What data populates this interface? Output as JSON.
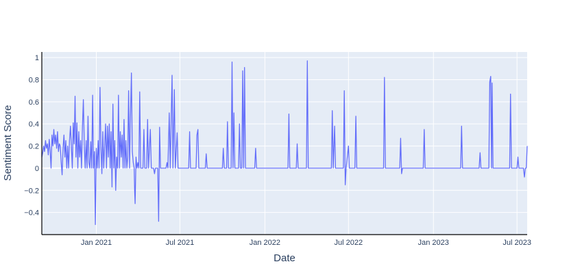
{
  "chart_data": {
    "type": "line",
    "title": "",
    "xlabel": "Date",
    "ylabel": "Sentiment Score",
    "xlim": [
      "2020-09-05",
      "2023-07-23"
    ],
    "ylim": [
      -0.6,
      1.05
    ],
    "grid": true,
    "colors": {
      "line": "#636efa",
      "plot_bg": "#e5ecf6",
      "grid": "#ffffff",
      "axis": "#000000",
      "text": "#2a3f5f"
    },
    "x_ticks": [
      {
        "date": "2021-01-01",
        "label": "Jan 2021"
      },
      {
        "date": "2021-07-01",
        "label": "Jul 2021"
      },
      {
        "date": "2022-01-01",
        "label": "Jan 2022"
      },
      {
        "date": "2022-07-01",
        "label": "Jul 2022"
      },
      {
        "date": "2023-01-01",
        "label": "Jan 2023"
      },
      {
        "date": "2023-07-01",
        "label": "Jul 2023"
      }
    ],
    "y_ticks": [
      {
        "value": -0.4,
        "label": "−0.4"
      },
      {
        "value": -0.2,
        "label": "−0.2"
      },
      {
        "value": 0,
        "label": "0"
      },
      {
        "value": 0.2,
        "label": "0.2"
      },
      {
        "value": 0.4,
        "label": "0.4"
      },
      {
        "value": 0.6,
        "label": "0.6"
      },
      {
        "value": 0.8,
        "label": "0.8"
      },
      {
        "value": 1,
        "label": "1"
      }
    ],
    "series": [
      {
        "values": [
          [
            "2020-09-05",
            0.1
          ],
          [
            "2020-09-07",
            0.14
          ],
          [
            "2020-09-09",
            0.2
          ],
          [
            "2020-09-11",
            0.15
          ],
          [
            "2020-09-13",
            0.25
          ],
          [
            "2020-09-15",
            0.18
          ],
          [
            "2020-09-17",
            0.22
          ],
          [
            "2020-09-19",
            0.12
          ],
          [
            "2020-09-21",
            0.26
          ],
          [
            "2020-09-23",
            0.16
          ],
          [
            "2020-09-25",
            0.0
          ],
          [
            "2020-09-27",
            0.3
          ],
          [
            "2020-09-29",
            0.2
          ],
          [
            "2020-10-01",
            0.35
          ],
          [
            "2020-10-03",
            0.22
          ],
          [
            "2020-10-05",
            0.3
          ],
          [
            "2020-10-07",
            0.18
          ],
          [
            "2020-10-09",
            0.33
          ],
          [
            "2020-10-11",
            0.15
          ],
          [
            "2020-10-13",
            0.22
          ],
          [
            "2020-10-15",
            0.2
          ],
          [
            "2020-10-17",
            0.05
          ],
          [
            "2020-10-19",
            -0.06
          ],
          [
            "2020-10-21",
            0.18
          ],
          [
            "2020-10-23",
            0.3
          ],
          [
            "2020-10-25",
            0.1
          ],
          [
            "2020-10-27",
            0.25
          ],
          [
            "2020-10-29",
            0.0
          ],
          [
            "2020-10-31",
            0.2
          ],
          [
            "2020-11-02",
            0.0
          ],
          [
            "2020-11-04",
            0.25
          ],
          [
            "2020-11-06",
            0.38
          ],
          [
            "2020-11-08",
            0.2
          ],
          [
            "2020-11-10",
            0.0
          ],
          [
            "2020-11-12",
            0.41
          ],
          [
            "2020-11-14",
            0.22
          ],
          [
            "2020-11-16",
            0.65
          ],
          [
            "2020-11-18",
            0.1
          ],
          [
            "2020-11-20",
            0.41
          ],
          [
            "2020-11-22",
            0.0
          ],
          [
            "2020-11-24",
            0.33
          ],
          [
            "2020-11-26",
            0.1
          ],
          [
            "2020-11-28",
            0.25
          ],
          [
            "2020-11-30",
            0.0
          ],
          [
            "2020-12-02",
            0.38
          ],
          [
            "2020-12-04",
            0.62
          ],
          [
            "2020-12-06",
            0.2
          ],
          [
            "2020-12-08",
            0.0
          ],
          [
            "2020-12-10",
            0.25
          ],
          [
            "2020-12-12",
            0.0
          ],
          [
            "2020-12-14",
            0.47
          ],
          [
            "2020-12-16",
            0.05
          ],
          [
            "2020-12-18",
            0.0
          ],
          [
            "2020-12-20",
            0.24
          ],
          [
            "2020-12-22",
            0.0
          ],
          [
            "2020-12-24",
            0.66
          ],
          [
            "2020-12-26",
            0.0
          ],
          [
            "2020-12-28",
            0.15
          ],
          [
            "2020-12-30",
            -0.51
          ],
          [
            "2021-01-01",
            0.18
          ],
          [
            "2021-01-03",
            0.0
          ],
          [
            "2021-01-05",
            0.25
          ],
          [
            "2021-01-07",
            0.0
          ],
          [
            "2021-01-09",
            0.73
          ],
          [
            "2021-01-11",
            0.2
          ],
          [
            "2021-01-13",
            -0.05
          ],
          [
            "2021-01-15",
            0.33
          ],
          [
            "2021-01-17",
            0.0
          ],
          [
            "2021-01-19",
            0.2
          ],
          [
            "2021-01-21",
            0.4
          ],
          [
            "2021-01-23",
            0.0
          ],
          [
            "2021-01-25",
            0.38
          ],
          [
            "2021-01-27",
            0.1
          ],
          [
            "2021-01-29",
            0.4
          ],
          [
            "2021-01-31",
            0.0
          ],
          [
            "2021-02-02",
            0.33
          ],
          [
            "2021-02-04",
            -0.17
          ],
          [
            "2021-02-06",
            0.58
          ],
          [
            "2021-02-08",
            0.0
          ],
          [
            "2021-02-10",
            0.25
          ],
          [
            "2021-02-12",
            -0.2
          ],
          [
            "2021-02-14",
            0.1
          ],
          [
            "2021-02-16",
            0.0
          ],
          [
            "2021-02-18",
            0.66
          ],
          [
            "2021-02-20",
            0.0
          ],
          [
            "2021-02-22",
            0.33
          ],
          [
            "2021-02-24",
            0.1
          ],
          [
            "2021-02-26",
            0.3
          ],
          [
            "2021-02-28",
            0.0
          ],
          [
            "2021-03-02",
            0.44
          ],
          [
            "2021-03-04",
            0.0
          ],
          [
            "2021-03-06",
            0.25
          ],
          [
            "2021-03-08",
            0.0
          ],
          [
            "2021-03-10",
            0.1
          ],
          [
            "2021-03-12",
            0.7
          ],
          [
            "2021-03-14",
            0.0
          ],
          [
            "2021-03-16",
            0.47
          ],
          [
            "2021-03-18",
            0.86
          ],
          [
            "2021-03-20",
            0.15
          ],
          [
            "2021-03-22",
            0.05
          ],
          [
            "2021-03-24",
            0.0
          ],
          [
            "2021-03-25",
            -0.2
          ],
          [
            "2021-03-26",
            -0.32
          ],
          [
            "2021-03-28",
            0.1
          ],
          [
            "2021-03-30",
            0.0
          ],
          [
            "2021-04-01",
            0.05
          ],
          [
            "2021-04-03",
            0.0
          ],
          [
            "2021-04-05",
            0.69
          ],
          [
            "2021-04-07",
            0.0
          ],
          [
            "2021-04-12",
            0.0
          ],
          [
            "2021-04-14",
            0.35
          ],
          [
            "2021-04-16",
            0.0
          ],
          [
            "2021-04-20",
            0.0
          ],
          [
            "2021-04-22",
            0.44
          ],
          [
            "2021-04-24",
            0.0
          ],
          [
            "2021-04-28",
            0.35
          ],
          [
            "2021-04-30",
            0.0
          ],
          [
            "2021-05-05",
            0.0
          ],
          [
            "2021-05-07",
            -0.05
          ],
          [
            "2021-05-09",
            0.0
          ],
          [
            "2021-05-14",
            0.0
          ],
          [
            "2021-05-16",
            -0.48
          ],
          [
            "2021-05-18",
            0.37
          ],
          [
            "2021-05-20",
            0.0
          ],
          [
            "2021-06-01",
            0.0
          ],
          [
            "2021-06-03",
            0.05
          ],
          [
            "2021-06-05",
            0.0
          ],
          [
            "2021-06-08",
            0.5
          ],
          [
            "2021-06-10",
            0.0
          ],
          [
            "2021-06-14",
            0.84
          ],
          [
            "2021-06-16",
            0.0
          ],
          [
            "2021-06-19",
            0.71
          ],
          [
            "2021-06-21",
            0.0
          ],
          [
            "2021-06-25",
            0.32
          ],
          [
            "2021-06-27",
            0.0
          ],
          [
            "2021-07-20",
            0.0
          ],
          [
            "2021-07-22",
            0.33
          ],
          [
            "2021-07-24",
            0.0
          ],
          [
            "2021-08-05",
            0.0
          ],
          [
            "2021-08-07",
            0.3
          ],
          [
            "2021-08-09",
            0.35
          ],
          [
            "2021-08-11",
            0.0
          ],
          [
            "2021-08-25",
            0.0
          ],
          [
            "2021-08-27",
            0.13
          ],
          [
            "2021-08-29",
            0.0
          ],
          [
            "2021-10-01",
            0.0
          ],
          [
            "2021-10-03",
            0.18
          ],
          [
            "2021-10-05",
            0.0
          ],
          [
            "2021-10-10",
            0.0
          ],
          [
            "2021-10-12",
            0.42
          ],
          [
            "2021-10-14",
            0.0
          ],
          [
            "2021-10-20",
            0.0
          ],
          [
            "2021-10-22",
            0.96
          ],
          [
            "2021-10-24",
            0.0
          ],
          [
            "2021-10-26",
            0.5
          ],
          [
            "2021-10-28",
            0.0
          ],
          [
            "2021-11-05",
            0.0
          ],
          [
            "2021-11-07",
            0.4
          ],
          [
            "2021-11-09",
            0.0
          ],
          [
            "2021-11-12",
            0.0
          ],
          [
            "2021-11-14",
            0.88
          ],
          [
            "2021-11-16",
            0.0
          ],
          [
            "2021-11-18",
            0.91
          ],
          [
            "2021-11-20",
            0.0
          ],
          [
            "2021-12-10",
            0.0
          ],
          [
            "2021-12-12",
            0.18
          ],
          [
            "2021-12-14",
            0.0
          ],
          [
            "2022-02-20",
            0.0
          ],
          [
            "2022-02-22",
            0.49
          ],
          [
            "2022-02-24",
            0.0
          ],
          [
            "2022-03-10",
            0.0
          ],
          [
            "2022-03-12",
            0.22
          ],
          [
            "2022-03-14",
            0.0
          ],
          [
            "2022-04-01",
            0.0
          ],
          [
            "2022-04-03",
            0.97
          ],
          [
            "2022-04-05",
            0.0
          ],
          [
            "2022-05-25",
            0.0
          ],
          [
            "2022-05-27",
            0.52
          ],
          [
            "2022-05-29",
            0.0
          ],
          [
            "2022-06-01",
            0.38
          ],
          [
            "2022-06-03",
            0.0
          ],
          [
            "2022-06-20",
            0.0
          ],
          [
            "2022-06-22",
            0.7
          ],
          [
            "2022-06-24",
            -0.15
          ],
          [
            "2022-06-26",
            0.0
          ],
          [
            "2022-07-01",
            0.2
          ],
          [
            "2022-07-03",
            0.0
          ],
          [
            "2022-07-15",
            0.0
          ],
          [
            "2022-07-17",
            0.47
          ],
          [
            "2022-07-19",
            0.0
          ],
          [
            "2022-09-15",
            0.0
          ],
          [
            "2022-09-17",
            0.82
          ],
          [
            "2022-09-19",
            0.0
          ],
          [
            "2022-10-20",
            0.0
          ],
          [
            "2022-10-22",
            0.27
          ],
          [
            "2022-10-24",
            -0.05
          ],
          [
            "2022-10-26",
            0.0
          ],
          [
            "2022-12-10",
            0.0
          ],
          [
            "2022-12-12",
            0.35
          ],
          [
            "2022-12-14",
            0.0
          ],
          [
            "2023-03-01",
            0.0
          ],
          [
            "2023-03-03",
            0.38
          ],
          [
            "2023-03-05",
            0.0
          ],
          [
            "2023-04-10",
            0.0
          ],
          [
            "2023-04-12",
            0.14
          ],
          [
            "2023-04-14",
            0.0
          ],
          [
            "2023-05-01",
            0.0
          ],
          [
            "2023-05-03",
            0.78
          ],
          [
            "2023-05-05",
            0.83
          ],
          [
            "2023-05-07",
            0.0
          ],
          [
            "2023-05-08",
            0.77
          ],
          [
            "2023-05-10",
            0.0
          ],
          [
            "2023-06-15",
            0.0
          ],
          [
            "2023-06-17",
            0.67
          ],
          [
            "2023-06-19",
            0.0
          ],
          [
            "2023-07-01",
            0.0
          ],
          [
            "2023-07-03",
            0.1
          ],
          [
            "2023-07-05",
            0.0
          ],
          [
            "2023-07-15",
            0.0
          ],
          [
            "2023-07-17",
            -0.08
          ],
          [
            "2023-07-19",
            0.0
          ],
          [
            "2023-07-21",
            0.0
          ],
          [
            "2023-07-23",
            0.2
          ]
        ]
      }
    ]
  }
}
